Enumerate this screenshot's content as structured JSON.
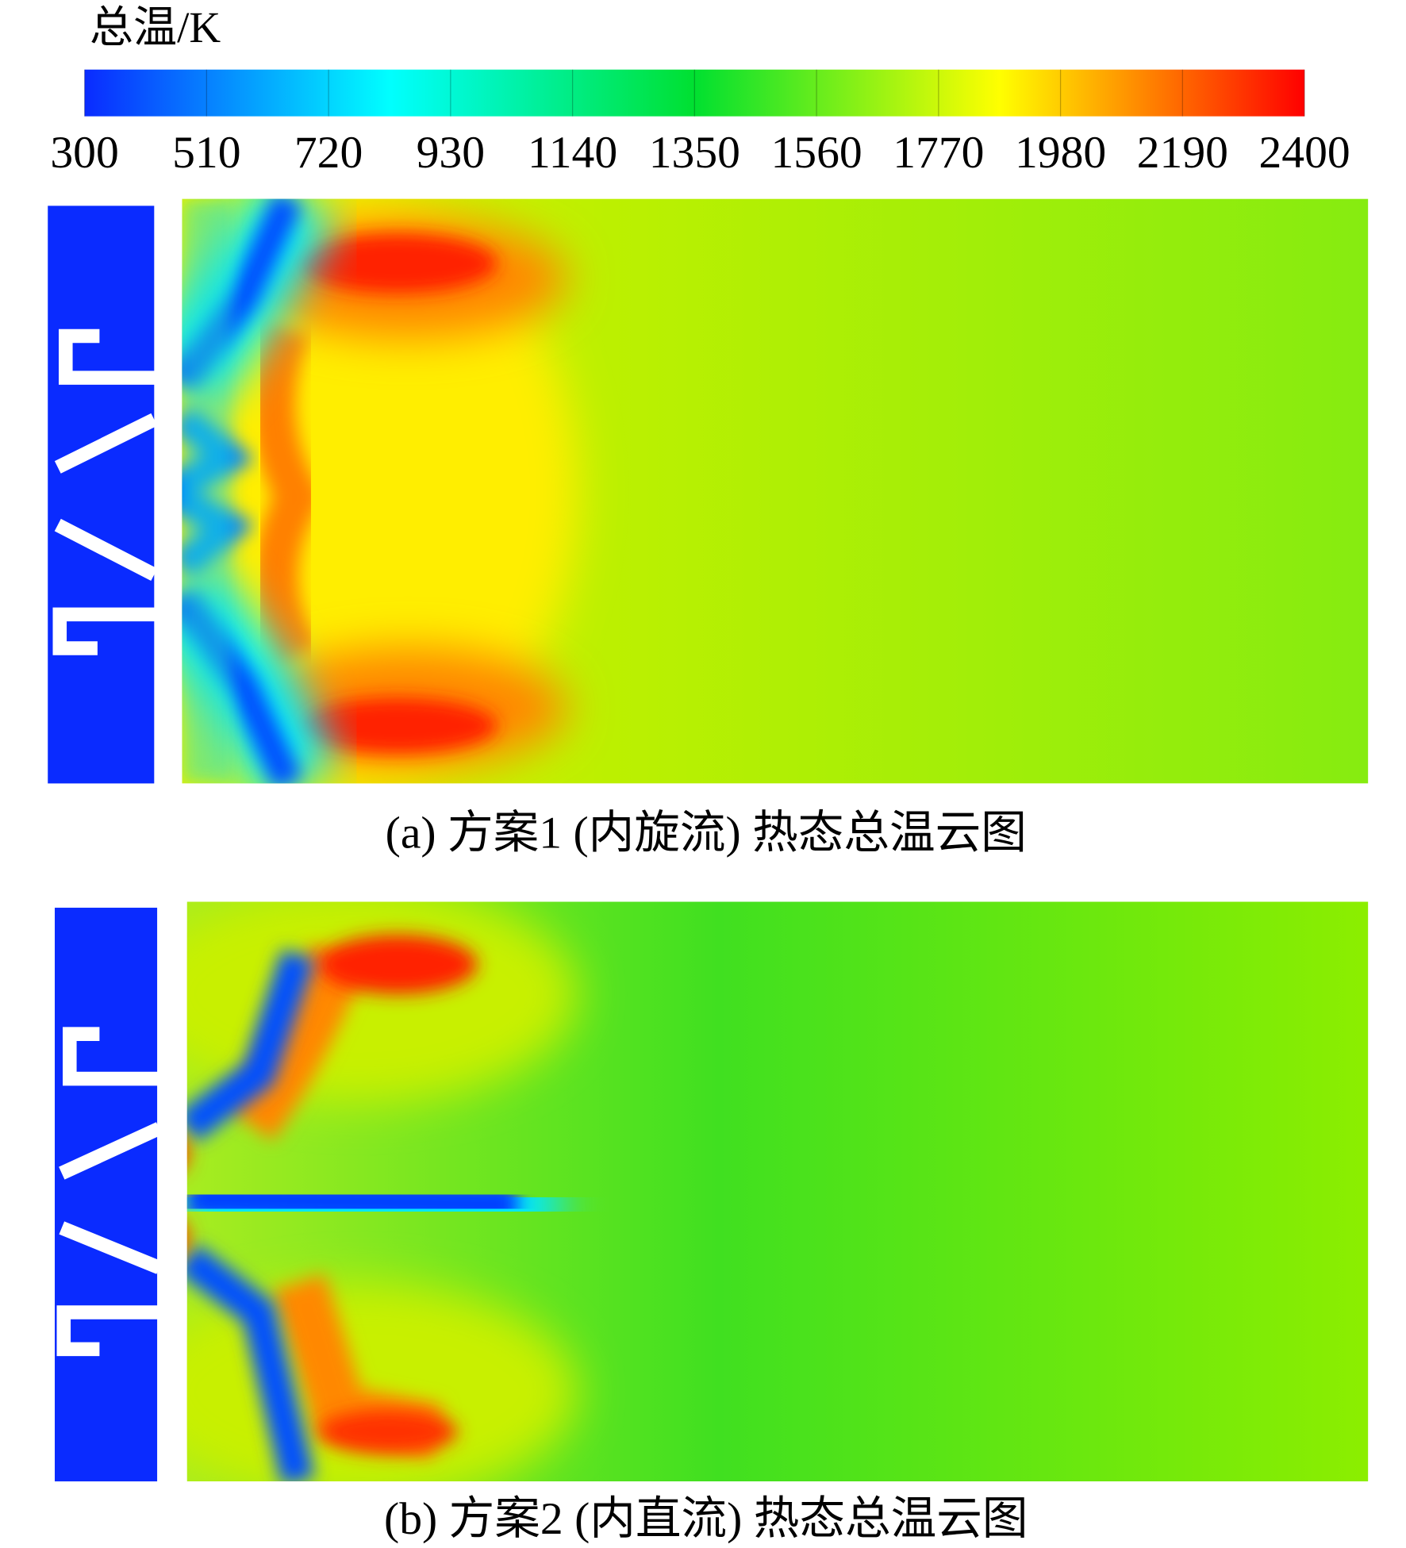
{
  "chart_data": {
    "type": "colorbar",
    "title": "总温/K",
    "lim": [
      300,
      2400
    ],
    "ticks": [
      300,
      510,
      720,
      930,
      1140,
      1350,
      1560,
      1770,
      1980,
      2190,
      2400
    ],
    "colors": [
      "#0a2bff",
      "#00ffff",
      "#00e030",
      "#ffff00",
      "#ff0000"
    ]
  },
  "panels": [
    {
      "caption": "(a) 方案1 (内旋流) 热态总温云图"
    },
    {
      "caption": "(b) 方案2 (内直流) 热态总温云图"
    }
  ]
}
